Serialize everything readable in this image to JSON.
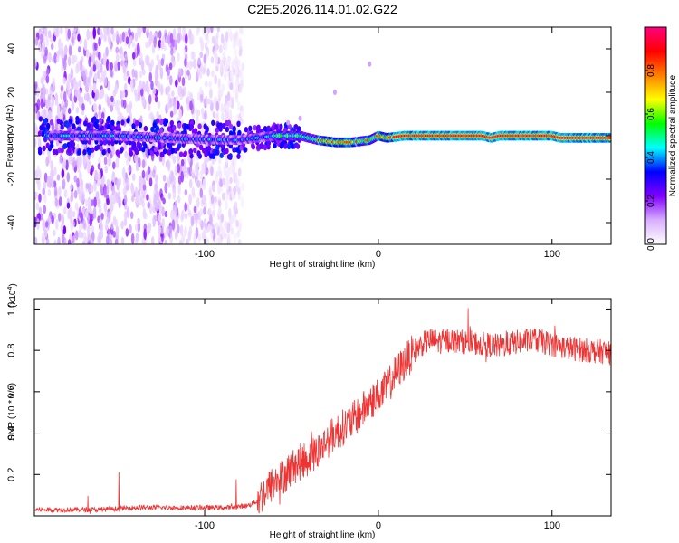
{
  "title": "C2E5.2026.114.01.02.G22",
  "chart_data": [
    {
      "type": "heatmap",
      "name": "spectrogram",
      "xlabel": "Height of straight line (km)",
      "ylabel": "Frequency (Hz)",
      "xlim": [
        -198,
        134
      ],
      "ylim": [
        -50,
        50
      ],
      "x_ticks": [
        -100,
        0,
        100
      ],
      "y_ticks": [
        -40,
        -20,
        0,
        20,
        40
      ],
      "x_tick_labels": [
        "-100",
        "0",
        "100"
      ],
      "y_tick_labels": [
        "-40",
        "-20",
        "0",
        "20",
        "40"
      ],
      "colorbar": {
        "label": "Normalized spectral amplitude",
        "range": [
          0,
          1
        ],
        "ticks": [
          0.0,
          0.2,
          0.4,
          0.6,
          0.8
        ],
        "tick_labels": [
          "0.0",
          "0.2",
          "0.4",
          "0.6",
          "0.8"
        ],
        "colors": [
          "#ffffff",
          "#d8b0ff",
          "#8000ff",
          "#0000ff",
          "#00ffff",
          "#00ff00",
          "#ffff00",
          "#ff8000",
          "#ff0000",
          "#ff0080"
        ]
      },
      "ridge_track": {
        "x": [
          -190,
          -150,
          -110,
          -80,
          -60,
          -45,
          -35,
          -25,
          -15,
          -5,
          0,
          5,
          15,
          40,
          60,
          65,
          70,
          90,
          100,
          105,
          110,
          115,
          134
        ],
        "y": [
          0,
          0,
          -1.5,
          -2,
          0,
          0,
          -2,
          -3,
          -3,
          -2,
          0,
          -1,
          0,
          0,
          0,
          -1,
          0,
          0,
          0,
          -1,
          -1,
          -1,
          -1
        ]
      },
      "noise_region_x": [
        -198,
        -78
      ]
    },
    {
      "type": "line",
      "name": "snr",
      "xlabel": "Height of straight line (km)",
      "ylabel": "SNR (10 * v/v)",
      "y_multiplier": "(x10",
      "y_multiplier_exp": "4",
      "y_multiplier_close": ")",
      "xlim": [
        -198,
        134
      ],
      "ylim": [
        0,
        1.05
      ],
      "x_ticks": [
        -100,
        0,
        100
      ],
      "y_ticks": [
        0.2,
        0.4,
        0.6,
        0.8,
        1.0
      ],
      "x_tick_labels": [
        "-100",
        "0",
        "100"
      ],
      "y_tick_labels": [
        "0.2",
        "0.4",
        "0.6",
        "0.8",
        "1.0"
      ],
      "color": "#ee3333",
      "series": [
        {
          "name": "SNR",
          "x": [
            -198,
            -180,
            -160,
            -140,
            -120,
            -100,
            -85,
            -75,
            -70,
            -65,
            -60,
            -55,
            -50,
            -45,
            -40,
            -35,
            -30,
            -25,
            -20,
            -15,
            -10,
            -5,
            0,
            5,
            10,
            15,
            20,
            25,
            30,
            35,
            40,
            50,
            60,
            70,
            80,
            90,
            100,
            110,
            120,
            134
          ],
          "y": [
            0.03,
            0.03,
            0.03,
            0.04,
            0.04,
            0.04,
            0.04,
            0.05,
            0.07,
            0.12,
            0.16,
            0.19,
            0.23,
            0.26,
            0.28,
            0.31,
            0.36,
            0.4,
            0.43,
            0.46,
            0.5,
            0.55,
            0.58,
            0.62,
            0.69,
            0.74,
            0.79,
            0.83,
            0.85,
            0.84,
            0.85,
            0.84,
            0.83,
            0.82,
            0.84,
            0.85,
            0.83,
            0.81,
            0.8,
            0.79
          ]
        }
      ]
    }
  ]
}
